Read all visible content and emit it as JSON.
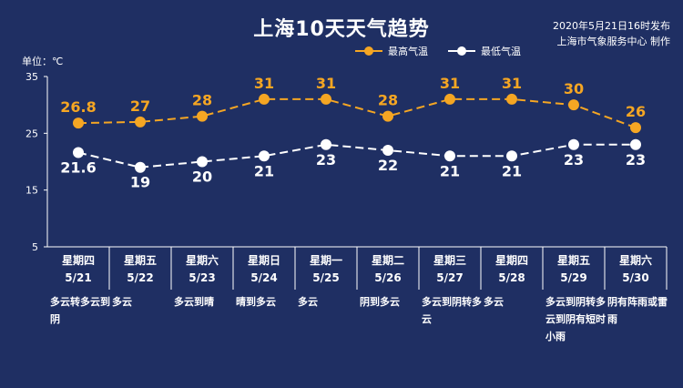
{
  "header": {
    "title": "上海10天天气趋势",
    "publish_time": "2020年5月21日16时发布",
    "publisher": "上海市气象服务中心 制作",
    "unit_label": "单位：℃"
  },
  "colors": {
    "background": "#1f2f63",
    "high": "#f5a623",
    "low": "#ffffff"
  },
  "chart_data": {
    "type": "line",
    "ylim": [
      5,
      35
    ],
    "yticks": [
      5,
      15,
      25,
      35
    ],
    "categories": [
      "5/21",
      "5/22",
      "5/23",
      "5/24",
      "5/25",
      "5/26",
      "5/27",
      "5/28",
      "5/29",
      "5/30"
    ],
    "weekdays": [
      "星期四",
      "星期五",
      "星期六",
      "星期日",
      "星期一",
      "星期二",
      "星期三",
      "星期四",
      "星期五",
      "星期六"
    ],
    "conditions": [
      "多云转多云到阴",
      "多云",
      "多云到晴",
      "晴到多云",
      "多云",
      "阴到多云",
      "多云到阴转多云",
      "多云",
      "多云到阴转多云到阴有短时小雨",
      "阴有阵雨或雷雨"
    ],
    "series": [
      {
        "name": "最高气温",
        "labels": [
          "26.8",
          "27",
          "28",
          "31",
          "31",
          "28",
          "31",
          "31",
          "30",
          "26"
        ],
        "values": [
          26.8,
          27,
          28,
          31,
          31,
          28,
          31,
          31,
          30,
          26
        ]
      },
      {
        "name": "最低气温",
        "labels": [
          "21.6",
          "19",
          "20",
          "21",
          "23",
          "22",
          "21",
          "21",
          "23",
          "23"
        ],
        "values": [
          21.6,
          19,
          20,
          21,
          23,
          22,
          21,
          21,
          23,
          23
        ]
      }
    ],
    "legend": "top-right",
    "grid": false
  }
}
